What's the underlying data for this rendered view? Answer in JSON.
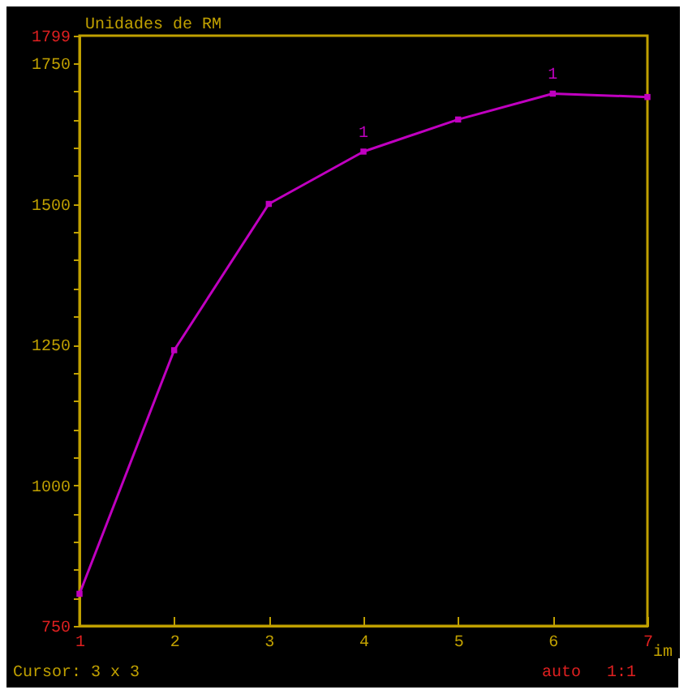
{
  "chart_data": {
    "type": "line",
    "ylabel": "Unidades de RM",
    "xlabel": "im",
    "x": [
      1,
      2,
      3,
      4,
      5,
      6,
      7
    ],
    "series": [
      {
        "color": "#c000c0",
        "values": [
          807,
          1240,
          1500,
          1593,
          1650,
          1696,
          1690
        ]
      }
    ],
    "xlim": [
      1,
      7
    ],
    "xticks": [
      1,
      2,
      3,
      4,
      5,
      6,
      7
    ],
    "ylim": [
      750,
      1799
    ],
    "yticks": [
      750,
      {
        "value": 800,
        "label": null
      },
      {
        "value": 850,
        "label": null
      },
      {
        "value": 900,
        "label": null
      },
      {
        "value": 950,
        "label": null
      },
      1000,
      {
        "value": 1050,
        "label": null
      },
      {
        "value": 1100,
        "label": null
      },
      {
        "value": 1150,
        "label": null
      },
      {
        "value": 1200,
        "label": null
      },
      1250,
      {
        "value": 1300,
        "label": null
      },
      {
        "value": 1350,
        "label": null
      },
      {
        "value": 1400,
        "label": null
      },
      {
        "value": 1450,
        "label": null
      },
      1500,
      {
        "value": 1550,
        "label": null
      },
      {
        "value": 1600,
        "label": null
      },
      {
        "value": 1650,
        "label": null
      },
      {
        "value": 1700,
        "label": null
      },
      1750,
      1799
    ],
    "marker": "square",
    "line_style": "solid",
    "annotations": [
      {
        "text": "1",
        "x": 4,
        "y": 1593
      },
      {
        "text": "1",
        "x": 6,
        "y": 1696
      },
      "Cursor: 3 x 3",
      "auto",
      "1:1"
    ]
  }
}
